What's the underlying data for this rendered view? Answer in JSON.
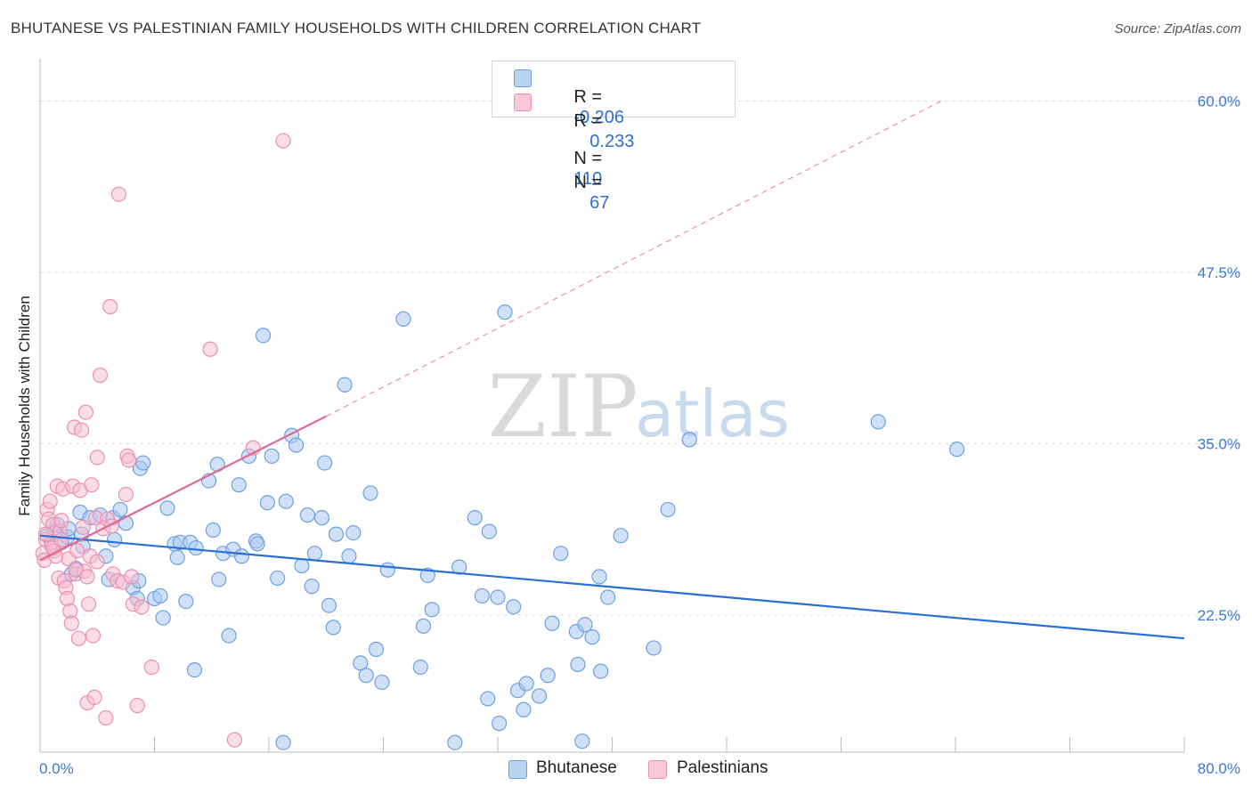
{
  "title": "BHUTANESE VS PALESTINIAN FAMILY HOUSEHOLDS WITH CHILDREN CORRELATION CHART",
  "source": "Source: ZipAtlas.com",
  "watermark": {
    "zip": "ZIP",
    "atlas": "atlas"
  },
  "legend": {
    "bhutanese": {
      "r_label": "R =",
      "r_value": "-0.206",
      "n_label": "N =",
      "n_value": "110"
    },
    "palestinians": {
      "r_label": "R =",
      "r_value": "0.233",
      "n_label": "N =",
      "n_value": "67"
    }
  },
  "series_labels": {
    "bhutanese": "Bhutanese",
    "palestinians": "Palestinians"
  },
  "colors": {
    "blue_fill": "#a9c8f0",
    "blue_stroke": "#6d9fe0",
    "blue_line": "#2a6fd4",
    "pink_fill": "#f7bcd0",
    "pink_stroke": "#ec8fb0",
    "pink_line": "#e0678f",
    "tick_label": "#3a78d1",
    "grid": "#dcdcdc"
  },
  "chart_data": {
    "type": "scatter",
    "title": "BHUTANESE VS PALESTINIAN FAMILY HOUSEHOLDS WITH CHILDREN CORRELATION CHART",
    "xlabel": "",
    "ylabel": "Family Households with Children",
    "xlim": [
      0,
      80
    ],
    "ylim": [
      12.5,
      62.5
    ],
    "x_tick_labels": [
      "0.0%",
      "80.0%"
    ],
    "y_ticks": [
      22.5,
      35.0,
      47.5,
      60.0
    ],
    "y_tick_labels": [
      "22.5%",
      "35.0%",
      "47.5%",
      "60.0%"
    ],
    "grid": true,
    "series": [
      {
        "name": "Bhutanese",
        "points": [
          [
            0.5,
            28.3
          ],
          [
            0.8,
            27.6
          ],
          [
            1.2,
            29.1
          ],
          [
            1.5,
            27.8
          ],
          [
            1.9,
            28.2
          ],
          [
            2.2,
            25.5
          ],
          [
            2.5,
            25.9
          ],
          [
            2.8,
            30.0
          ],
          [
            2.9,
            28.4
          ],
          [
            3.5,
            29.6
          ],
          [
            4.2,
            29.8
          ],
          [
            4.6,
            26.8
          ],
          [
            4.8,
            25.1
          ],
          [
            5.1,
            29.6
          ],
          [
            5.2,
            28.0
          ],
          [
            5.6,
            30.2
          ],
          [
            6.0,
            29.2
          ],
          [
            6.5,
            24.5
          ],
          [
            6.8,
            23.7
          ],
          [
            7.0,
            33.2
          ],
          [
            7.2,
            33.6
          ],
          [
            8.0,
            23.7
          ],
          [
            8.4,
            23.9
          ],
          [
            8.6,
            22.3
          ],
          [
            8.9,
            30.3
          ],
          [
            9.4,
            27.7
          ],
          [
            9.6,
            26.7
          ],
          [
            9.8,
            27.8
          ],
          [
            10.2,
            23.5
          ],
          [
            10.5,
            27.8
          ],
          [
            10.8,
            18.5
          ],
          [
            10.9,
            27.4
          ],
          [
            11.8,
            32.3
          ],
          [
            12.1,
            28.7
          ],
          [
            12.4,
            33.5
          ],
          [
            12.5,
            25.1
          ],
          [
            12.8,
            27.0
          ],
          [
            13.2,
            21.0
          ],
          [
            13.5,
            27.3
          ],
          [
            13.9,
            32.0
          ],
          [
            14.1,
            26.8
          ],
          [
            14.6,
            34.1
          ],
          [
            15.1,
            27.9
          ],
          [
            15.2,
            27.7
          ],
          [
            15.6,
            42.9
          ],
          [
            15.9,
            30.7
          ],
          [
            16.2,
            34.1
          ],
          [
            16.6,
            25.2
          ],
          [
            17.0,
            13.2
          ],
          [
            17.2,
            30.8
          ],
          [
            17.6,
            35.6
          ],
          [
            17.9,
            34.9
          ],
          [
            18.3,
            26.1
          ],
          [
            18.7,
            29.8
          ],
          [
            19.0,
            24.6
          ],
          [
            19.2,
            27.0
          ],
          [
            19.7,
            29.6
          ],
          [
            19.9,
            33.6
          ],
          [
            20.2,
            23.2
          ],
          [
            20.5,
            21.6
          ],
          [
            20.7,
            28.4
          ],
          [
            21.3,
            39.3
          ],
          [
            21.6,
            26.8
          ],
          [
            21.9,
            28.5
          ],
          [
            22.4,
            19.0
          ],
          [
            22.8,
            18.1
          ],
          [
            23.1,
            31.4
          ],
          [
            23.5,
            20.0
          ],
          [
            23.9,
            17.6
          ],
          [
            24.3,
            25.8
          ],
          [
            25.4,
            44.1
          ],
          [
            26.6,
            18.7
          ],
          [
            26.8,
            21.7
          ],
          [
            27.1,
            25.4
          ],
          [
            27.4,
            22.9
          ],
          [
            29.0,
            13.2
          ],
          [
            29.3,
            26.0
          ],
          [
            30.4,
            29.6
          ],
          [
            30.9,
            23.9
          ],
          [
            31.3,
            16.4
          ],
          [
            31.4,
            28.6
          ],
          [
            32.0,
            23.8
          ],
          [
            32.1,
            14.6
          ],
          [
            32.5,
            44.6
          ],
          [
            33.1,
            23.1
          ],
          [
            33.4,
            17.0
          ],
          [
            33.8,
            15.6
          ],
          [
            34.0,
            17.5
          ],
          [
            34.9,
            16.6
          ],
          [
            35.5,
            18.1
          ],
          [
            35.8,
            21.9
          ],
          [
            36.4,
            27.0
          ],
          [
            37.5,
            21.3
          ],
          [
            37.6,
            18.9
          ],
          [
            37.9,
            13.3
          ],
          [
            38.1,
            21.8
          ],
          [
            38.6,
            20.9
          ],
          [
            39.1,
            25.3
          ],
          [
            39.2,
            18.4
          ],
          [
            39.7,
            23.8
          ],
          [
            40.6,
            28.3
          ],
          [
            42.9,
            20.1
          ],
          [
            43.9,
            30.2
          ],
          [
            45.4,
            35.3
          ],
          [
            58.6,
            36.6
          ],
          [
            64.1,
            34.6
          ],
          [
            1.0,
            28.5
          ],
          [
            2.0,
            28.8
          ],
          [
            3.0,
            27.5
          ],
          [
            6.9,
            25.0
          ]
        ]
      },
      {
        "name": "Palestinians",
        "points": [
          [
            0.2,
            27.0
          ],
          [
            0.3,
            26.5
          ],
          [
            0.4,
            28.0
          ],
          [
            0.5,
            30.2
          ],
          [
            0.6,
            29.5
          ],
          [
            0.7,
            30.8
          ],
          [
            0.8,
            27.8
          ],
          [
            0.9,
            29.1
          ],
          [
            1.0,
            27.2
          ],
          [
            1.1,
            26.8
          ],
          [
            1.2,
            31.9
          ],
          [
            1.3,
            25.2
          ],
          [
            1.4,
            28.6
          ],
          [
            1.5,
            29.4
          ],
          [
            1.6,
            31.7
          ],
          [
            1.7,
            25.0
          ],
          [
            1.8,
            24.5
          ],
          [
            1.9,
            23.7
          ],
          [
            2.0,
            26.6
          ],
          [
            2.1,
            22.8
          ],
          [
            2.2,
            21.9
          ],
          [
            2.3,
            31.9
          ],
          [
            2.4,
            36.2
          ],
          [
            2.5,
            25.5
          ],
          [
            2.6,
            27.2
          ],
          [
            2.7,
            20.8
          ],
          [
            2.8,
            31.6
          ],
          [
            2.9,
            36.0
          ],
          [
            3.0,
            28.9
          ],
          [
            3.1,
            25.7
          ],
          [
            3.2,
            37.3
          ],
          [
            3.3,
            16.1
          ],
          [
            3.4,
            23.3
          ],
          [
            3.5,
            26.8
          ],
          [
            3.6,
            32.0
          ],
          [
            3.7,
            21.0
          ],
          [
            3.8,
            16.5
          ],
          [
            3.9,
            29.6
          ],
          [
            4.0,
            34.0
          ],
          [
            4.2,
            40.0
          ],
          [
            4.4,
            28.8
          ],
          [
            4.6,
            15.0
          ],
          [
            4.7,
            29.5
          ],
          [
            4.9,
            45.0
          ],
          [
            5.1,
            25.5
          ],
          [
            5.4,
            25.0
          ],
          [
            5.5,
            53.2
          ],
          [
            5.8,
            24.9
          ],
          [
            6.0,
            31.3
          ],
          [
            6.1,
            34.1
          ],
          [
            6.2,
            33.8
          ],
          [
            6.4,
            25.3
          ],
          [
            6.5,
            23.3
          ],
          [
            6.8,
            15.9
          ],
          [
            7.1,
            23.1
          ],
          [
            7.8,
            18.7
          ],
          [
            11.9,
            41.9
          ],
          [
            13.6,
            13.4
          ],
          [
            14.9,
            34.7
          ],
          [
            17.0,
            57.1
          ],
          [
            0.4,
            28.4
          ],
          [
            0.9,
            27.4
          ],
          [
            1.5,
            28.0
          ],
          [
            2.5,
            25.8
          ],
          [
            3.3,
            25.3
          ],
          [
            4.0,
            26.4
          ],
          [
            5.0,
            29.0
          ]
        ]
      }
    ],
    "trend_lines": [
      {
        "series": "Bhutanese",
        "x": [
          0,
          80
        ],
        "y": [
          28.3,
          20.8
        ]
      },
      {
        "series": "Palestinians",
        "x": [
          0,
          20
        ],
        "y": [
          26.5,
          37.0
        ]
      },
      {
        "series": "Palestinians (extrapolated)",
        "x": [
          20,
          63
        ],
        "y": [
          37.0,
          60.0
        ]
      }
    ]
  }
}
